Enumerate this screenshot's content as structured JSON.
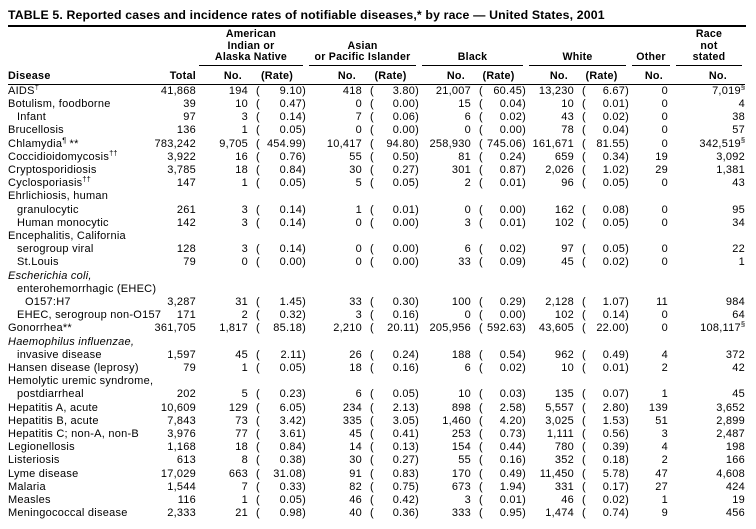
{
  "title": "TABLE 5. Reported cases and incidence rates of notifiable diseases,* by race — United States, 2001",
  "header": {
    "disease_label": "Disease",
    "total_label": "Total",
    "no_label": "No.",
    "rate_label": "(Rate)",
    "groups": [
      {
        "name": "American Indian or Alaska Native",
        "lines": [
          "American",
          "Indian or",
          "Alaska Native"
        ]
      },
      {
        "name": "Asian or Pacific Islander",
        "lines": [
          "Asian",
          "or Pacific Islander"
        ]
      },
      {
        "name": "Black",
        "lines": [
          "Black"
        ]
      },
      {
        "name": "White",
        "lines": [
          "White"
        ]
      },
      {
        "name": "Other",
        "lines": [
          "Other"
        ]
      },
      {
        "name": "Race not stated",
        "lines": [
          "Race",
          "not",
          "stated"
        ]
      }
    ]
  },
  "rows": [
    {
      "label": "AIDS",
      "sup": "†",
      "indent": 0,
      "total": "41,868",
      "aian": {
        "no": "194",
        "rate": "9.10"
      },
      "api": {
        "no": "418",
        "rate": "3.80"
      },
      "black": {
        "no": "21,007",
        "rate": "60.45"
      },
      "white": {
        "no": "13,230",
        "rate": "6.67"
      },
      "other": "0",
      "race_not_stated": {
        "no": "7,019",
        "sup": "§"
      }
    },
    {
      "label": "Botulism, foodborne",
      "indent": 0,
      "total": "39",
      "aian": {
        "no": "10",
        "rate": "0.47"
      },
      "api": {
        "no": "0",
        "rate": "0.00"
      },
      "black": {
        "no": "15",
        "rate": "0.04"
      },
      "white": {
        "no": "10",
        "rate": "0.01"
      },
      "other": "0",
      "race_not_stated": {
        "no": "4"
      }
    },
    {
      "label": "Infant",
      "indent": 1,
      "total": "97",
      "aian": {
        "no": "3",
        "rate": "0.14"
      },
      "api": {
        "no": "7",
        "rate": "0.06"
      },
      "black": {
        "no": "6",
        "rate": "0.02"
      },
      "white": {
        "no": "43",
        "rate": "0.02"
      },
      "other": "0",
      "race_not_stated": {
        "no": "38"
      }
    },
    {
      "label": "Brucellosis",
      "indent": 0,
      "total": "136",
      "aian": {
        "no": "1",
        "rate": "0.05"
      },
      "api": {
        "no": "0",
        "rate": "0.00"
      },
      "black": {
        "no": "0",
        "rate": "0.00"
      },
      "white": {
        "no": "78",
        "rate": "0.04"
      },
      "other": "0",
      "race_not_stated": {
        "no": "57"
      }
    },
    {
      "label": "Chlamydia",
      "sup": "¶",
      "after": " **",
      "indent": 0,
      "total": "783,242",
      "aian": {
        "no": "9,705",
        "rate": "454.99"
      },
      "api": {
        "no": "10,417",
        "rate": "94.80"
      },
      "black": {
        "no": "258,930",
        "rate": "745.06"
      },
      "white": {
        "no": "161,671",
        "rate": "81.55"
      },
      "other": "0",
      "race_not_stated": {
        "no": "342,519",
        "sup": "§"
      }
    },
    {
      "label": "Coccidioidomycosis",
      "sup": "††",
      "indent": 0,
      "total": "3,922",
      "aian": {
        "no": "16",
        "rate": "0.76"
      },
      "api": {
        "no": "55",
        "rate": "0.50"
      },
      "black": {
        "no": "81",
        "rate": "0.24"
      },
      "white": {
        "no": "659",
        "rate": "0.34"
      },
      "other": "19",
      "race_not_stated": {
        "no": "3,092"
      }
    },
    {
      "label": "Cryptosporidiosis",
      "indent": 0,
      "total": "3,785",
      "aian": {
        "no": "18",
        "rate": "0.84"
      },
      "api": {
        "no": "30",
        "rate": "0.27"
      },
      "black": {
        "no": "301",
        "rate": "0.87"
      },
      "white": {
        "no": "2,026",
        "rate": "1.02"
      },
      "other": "29",
      "race_not_stated": {
        "no": "1,381"
      }
    },
    {
      "label": "Cyclosporiasis",
      "sup": "††",
      "indent": 0,
      "total": "147",
      "aian": {
        "no": "1",
        "rate": "0.05"
      },
      "api": {
        "no": "5",
        "rate": "0.05"
      },
      "black": {
        "no": "2",
        "rate": "0.01"
      },
      "white": {
        "no": "96",
        "rate": "0.05"
      },
      "other": "0",
      "race_not_stated": {
        "no": "43"
      }
    },
    {
      "label": "Ehrlichiosis, human",
      "indent": 0,
      "section": true
    },
    {
      "label": "granulocytic",
      "indent": 1,
      "total": "261",
      "aian": {
        "no": "3",
        "rate": "0.14"
      },
      "api": {
        "no": "1",
        "rate": "0.01"
      },
      "black": {
        "no": "0",
        "rate": "0.00"
      },
      "white": {
        "no": "162",
        "rate": "0.08"
      },
      "other": "0",
      "race_not_stated": {
        "no": "95"
      }
    },
    {
      "label": "Human monocytic",
      "indent": 1,
      "total": "142",
      "aian": {
        "no": "3",
        "rate": "0.14"
      },
      "api": {
        "no": "0",
        "rate": "0.00"
      },
      "black": {
        "no": "3",
        "rate": "0.01"
      },
      "white": {
        "no": "102",
        "rate": "0.05"
      },
      "other": "0",
      "race_not_stated": {
        "no": "34"
      }
    },
    {
      "label": "Encephalitis, California",
      "indent": 0,
      "section": true
    },
    {
      "label": "serogroup viral",
      "indent": 1,
      "total": "128",
      "aian": {
        "no": "3",
        "rate": "0.14"
      },
      "api": {
        "no": "0",
        "rate": "0.00"
      },
      "black": {
        "no": "6",
        "rate": "0.02"
      },
      "white": {
        "no": "97",
        "rate": "0.05"
      },
      "other": "0",
      "race_not_stated": {
        "no": "22"
      }
    },
    {
      "label": "St.Louis",
      "indent": 1,
      "total": "79",
      "aian": {
        "no": "0",
        "rate": "0.00"
      },
      "api": {
        "no": "0",
        "rate": "0.00"
      },
      "black": {
        "no": "33",
        "rate": "0.09"
      },
      "white": {
        "no": "45",
        "rate": "0.02"
      },
      "other": "0",
      "race_not_stated": {
        "no": "1"
      }
    },
    {
      "label": "Escherichia coli,",
      "indent": 0,
      "italic": true,
      "section": true
    },
    {
      "label": "enterohemorrhagic (EHEC)",
      "indent": 1,
      "section": true
    },
    {
      "label": "O157:H7",
      "indent": 2,
      "total": "3,287",
      "aian": {
        "no": "31",
        "rate": "1.45"
      },
      "api": {
        "no": "33",
        "rate": "0.30"
      },
      "black": {
        "no": "100",
        "rate": "0.29"
      },
      "white": {
        "no": "2,128",
        "rate": "1.07"
      },
      "other": "11",
      "race_not_stated": {
        "no": "984"
      }
    },
    {
      "label": "EHEC, serogroup non-O157",
      "indent": 1,
      "total": "171",
      "aian": {
        "no": "2",
        "rate": "0.32"
      },
      "api": {
        "no": "3",
        "rate": "0.16"
      },
      "black": {
        "no": "0",
        "rate": "0.00"
      },
      "white": {
        "no": "102",
        "rate": "0.14"
      },
      "other": "0",
      "race_not_stated": {
        "no": "64"
      }
    },
    {
      "label": "Gonorrhea",
      "after": "**",
      "indent": 0,
      "total": "361,705",
      "aian": {
        "no": "1,817",
        "rate": "85.18"
      },
      "api": {
        "no": "2,210",
        "rate": "20.11"
      },
      "black": {
        "no": "205,956",
        "rate": "592.63"
      },
      "white": {
        "no": "43,605",
        "rate": "22.00"
      },
      "other": "0",
      "race_not_stated": {
        "no": "108,117",
        "sup": "§"
      }
    },
    {
      "label": "Haemophilus influenzae,",
      "indent": 0,
      "italic": true,
      "section": true
    },
    {
      "label": "invasive disease",
      "indent": 1,
      "total": "1,597",
      "aian": {
        "no": "45",
        "rate": "2.11"
      },
      "api": {
        "no": "26",
        "rate": "0.24"
      },
      "black": {
        "no": "188",
        "rate": "0.54"
      },
      "white": {
        "no": "962",
        "rate": "0.49"
      },
      "other": "4",
      "race_not_stated": {
        "no": "372"
      }
    },
    {
      "label": "Hansen disease (leprosy)",
      "indent": 0,
      "total": "79",
      "aian": {
        "no": "1",
        "rate": "0.05"
      },
      "api": {
        "no": "18",
        "rate": "0.16"
      },
      "black": {
        "no": "6",
        "rate": "0.02"
      },
      "white": {
        "no": "10",
        "rate": "0.01"
      },
      "other": "2",
      "race_not_stated": {
        "no": "42"
      }
    },
    {
      "label": "Hemolytic uremic syndrome,",
      "indent": 0,
      "section": true
    },
    {
      "label": "postdiarrheal",
      "indent": 1,
      "total": "202",
      "aian": {
        "no": "5",
        "rate": "0.23"
      },
      "api": {
        "no": "6",
        "rate": "0.05"
      },
      "black": {
        "no": "10",
        "rate": "0.03"
      },
      "white": {
        "no": "135",
        "rate": "0.07"
      },
      "other": "1",
      "race_not_stated": {
        "no": "45"
      }
    },
    {
      "label": "Hepatitis A, acute",
      "indent": 0,
      "total": "10,609",
      "aian": {
        "no": "129",
        "rate": "6.05"
      },
      "api": {
        "no": "234",
        "rate": "2.13"
      },
      "black": {
        "no": "898",
        "rate": "2.58"
      },
      "white": {
        "no": "5,557",
        "rate": "2.80"
      },
      "other": "139",
      "race_not_stated": {
        "no": "3,652"
      }
    },
    {
      "label": "Hepatitis B, acute",
      "indent": 0,
      "total": "7,843",
      "aian": {
        "no": "73",
        "rate": "3.42"
      },
      "api": {
        "no": "335",
        "rate": "3.05"
      },
      "black": {
        "no": "1,460",
        "rate": "4.20"
      },
      "white": {
        "no": "3,025",
        "rate": "1.53"
      },
      "other": "51",
      "race_not_stated": {
        "no": "2,899"
      }
    },
    {
      "label": "Hepatitis C; non-A, non-B",
      "indent": 0,
      "total": "3,976",
      "aian": {
        "no": "77",
        "rate": "3.61"
      },
      "api": {
        "no": "45",
        "rate": "0.41"
      },
      "black": {
        "no": "253",
        "rate": "0.73"
      },
      "white": {
        "no": "1,111",
        "rate": "0.56"
      },
      "other": "3",
      "race_not_stated": {
        "no": "2,487"
      }
    },
    {
      "label": "Legionellosis",
      "indent": 0,
      "total": "1,168",
      "aian": {
        "no": "18",
        "rate": "0.84"
      },
      "api": {
        "no": "14",
        "rate": "0.13"
      },
      "black": {
        "no": "154",
        "rate": "0.44"
      },
      "white": {
        "no": "780",
        "rate": "0.39"
      },
      "other": "4",
      "race_not_stated": {
        "no": "198"
      }
    },
    {
      "label": "Listeriosis",
      "indent": 0,
      "total": "613",
      "aian": {
        "no": "8",
        "rate": "0.38"
      },
      "api": {
        "no": "30",
        "rate": "0.27"
      },
      "black": {
        "no": "55",
        "rate": "0.16"
      },
      "white": {
        "no": "352",
        "rate": "0.18"
      },
      "other": "2",
      "race_not_stated": {
        "no": "166"
      }
    },
    {
      "label": "Lyme disease",
      "indent": 0,
      "total": "17,029",
      "aian": {
        "no": "663",
        "rate": "31.08"
      },
      "api": {
        "no": "91",
        "rate": "0.83"
      },
      "black": {
        "no": "170",
        "rate": "0.49"
      },
      "white": {
        "no": "11,450",
        "rate": "5.78"
      },
      "other": "47",
      "race_not_stated": {
        "no": "4,608"
      }
    },
    {
      "label": "Malaria",
      "indent": 0,
      "total": "1,544",
      "aian": {
        "no": "7",
        "rate": "0.33"
      },
      "api": {
        "no": "82",
        "rate": "0.75"
      },
      "black": {
        "no": "673",
        "rate": "1.94"
      },
      "white": {
        "no": "331",
        "rate": "0.17"
      },
      "other": "27",
      "race_not_stated": {
        "no": "424"
      }
    },
    {
      "label": "Measles",
      "indent": 0,
      "total": "116",
      "aian": {
        "no": "1",
        "rate": "0.05"
      },
      "api": {
        "no": "46",
        "rate": "0.42"
      },
      "black": {
        "no": "3",
        "rate": "0.01"
      },
      "white": {
        "no": "46",
        "rate": "0.02"
      },
      "other": "1",
      "race_not_stated": {
        "no": "19"
      }
    },
    {
      "label": "Meningococcal disease",
      "indent": 0,
      "total": "2,333",
      "aian": {
        "no": "21",
        "rate": "0.98"
      },
      "api": {
        "no": "40",
        "rate": "0.36"
      },
      "black": {
        "no": "333",
        "rate": "0.95"
      },
      "white": {
        "no": "1,474",
        "rate": "0.74"
      },
      "other": "9",
      "race_not_stated": {
        "no": "456"
      }
    }
  ]
}
